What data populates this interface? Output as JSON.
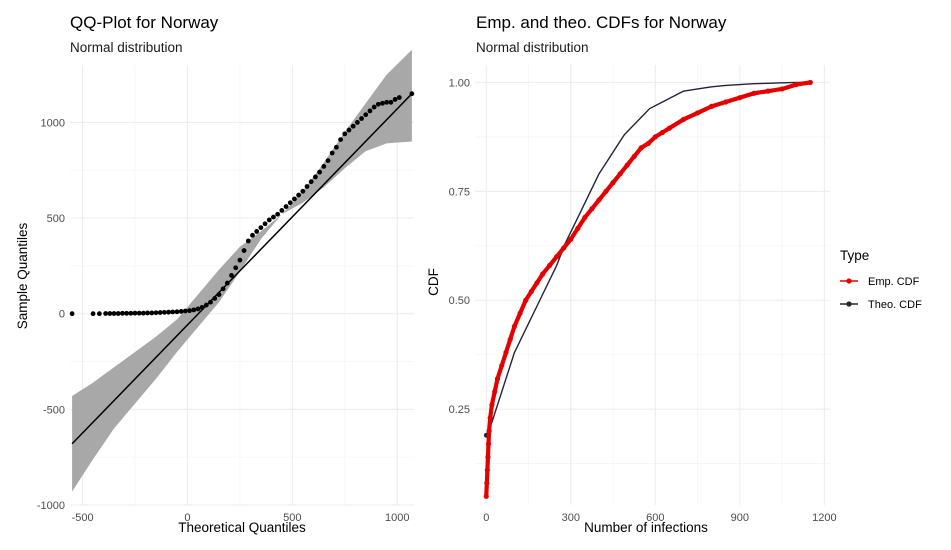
{
  "chart_data": [
    {
      "type": "scatter",
      "title": "QQ-Plot for Norway",
      "subtitle": "Normal distribution",
      "xlabel": "Theoretical Quantiles",
      "ylabel": "Sample Quantiles",
      "xlim": [
        -560,
        1080
      ],
      "ylim": [
        -1000,
        1300
      ],
      "xticks": [
        -500,
        0,
        500,
        1000
      ],
      "yticks": [
        -1000,
        -500,
        0,
        500,
        1000
      ],
      "grid": true,
      "reference_line": {
        "x": [
          -550,
          1070
        ],
        "y": [
          -680,
          1150
        ]
      },
      "confidence_band": {
        "x": [
          -550,
          -450,
          -350,
          -250,
          -150,
          -50,
          50,
          150,
          250,
          350,
          450,
          550,
          650,
          750,
          850,
          950,
          1070
        ],
        "lower": [
          -930,
          -760,
          -600,
          -470,
          -340,
          -200,
          -70,
          60,
          220,
          390,
          520,
          580,
          660,
          760,
          850,
          890,
          900
        ],
        "upper": [
          -430,
          -360,
          -280,
          -200,
          -120,
          -30,
          100,
          230,
          350,
          430,
          520,
          640,
          790,
          950,
          1100,
          1250,
          1380
        ]
      },
      "points": {
        "x": [
          -550,
          -450,
          -420,
          -390,
          -370,
          -350,
          -330,
          -310,
          -290,
          -270,
          -250,
          -230,
          -210,
          -190,
          -170,
          -150,
          -130,
          -110,
          -90,
          -70,
          -50,
          -30,
          -10,
          10,
          30,
          50,
          70,
          90,
          110,
          130,
          150,
          170,
          190,
          210,
          230,
          250,
          270,
          290,
          310,
          330,
          350,
          370,
          390,
          410,
          430,
          450,
          470,
          490,
          510,
          530,
          550,
          570,
          590,
          610,
          630,
          650,
          670,
          690,
          710,
          730,
          750,
          770,
          790,
          810,
          830,
          850,
          870,
          890,
          910,
          930,
          950,
          970,
          990,
          1010,
          1070
        ],
        "y": [
          0,
          0,
          0,
          1,
          1,
          1,
          1,
          2,
          2,
          2,
          3,
          3,
          3,
          4,
          4,
          5,
          6,
          7,
          8,
          9,
          10,
          12,
          14,
          16,
          20,
          25,
          33,
          45,
          60,
          80,
          100,
          130,
          160,
          200,
          240,
          280,
          330,
          380,
          410,
          430,
          450,
          470,
          490,
          505,
          520,
          540,
          560,
          580,
          600,
          620,
          640,
          665,
          690,
          715,
          740,
          770,
          800,
          840,
          870,
          910,
          940,
          960,
          980,
          1000,
          1020,
          1040,
          1060,
          1080,
          1095,
          1100,
          1105,
          1105,
          1120,
          1130,
          1150
        ]
      }
    },
    {
      "type": "line",
      "title": "Emp. and theo. CDFs for Norway",
      "subtitle": "Normal distribution",
      "xlabel": "Number of infections",
      "ylabel": "CDF",
      "xlim": [
        -40,
        1220
      ],
      "ylim": [
        0.03,
        1.04
      ],
      "xticks": [
        0,
        300,
        600,
        900,
        1200
      ],
      "yticks": [
        0.25,
        0.5,
        0.75,
        1.0
      ],
      "grid": true,
      "legend": {
        "title": "Type",
        "position": "right",
        "entries": [
          "Emp. CDF",
          "Theo. CDF"
        ]
      },
      "series": [
        {
          "name": "Emp. CDF",
          "color": "#e50000",
          "x": [
            0,
            2,
            4,
            6,
            8,
            10,
            14,
            20,
            30,
            40,
            55,
            70,
            85,
            100,
            120,
            140,
            160,
            180,
            200,
            225,
            250,
            275,
            300,
            325,
            350,
            375,
            400,
            425,
            450,
            475,
            500,
            525,
            550,
            575,
            600,
            625,
            650,
            700,
            750,
            800,
            850,
            900,
            950,
            1000,
            1050,
            1100,
            1150
          ],
          "y": [
            0.05,
            0.08,
            0.11,
            0.14,
            0.17,
            0.2,
            0.23,
            0.26,
            0.29,
            0.32,
            0.35,
            0.38,
            0.41,
            0.44,
            0.47,
            0.5,
            0.52,
            0.54,
            0.56,
            0.58,
            0.6,
            0.62,
            0.64,
            0.665,
            0.69,
            0.71,
            0.73,
            0.75,
            0.77,
            0.79,
            0.81,
            0.83,
            0.85,
            0.86,
            0.875,
            0.885,
            0.895,
            0.915,
            0.93,
            0.945,
            0.955,
            0.965,
            0.975,
            0.98,
            0.985,
            0.995,
            1.0
          ]
        },
        {
          "name": "Theo. CDF",
          "color": "#23233b",
          "x": [
            0,
            20,
            40,
            60,
            80,
            100,
            130,
            160,
            190,
            220,
            250,
            280,
            310,
            340,
            370,
            400,
            430,
            460,
            490,
            520,
            550,
            580,
            610,
            640,
            670,
            700,
            750,
            800,
            850,
            900,
            950,
            1000,
            1050,
            1100,
            1150
          ],
          "y": [
            0.19,
            0.22,
            0.26,
            0.3,
            0.34,
            0.38,
            0.42,
            0.46,
            0.5,
            0.54,
            0.58,
            0.63,
            0.67,
            0.71,
            0.75,
            0.79,
            0.82,
            0.85,
            0.88,
            0.9,
            0.92,
            0.94,
            0.95,
            0.96,
            0.97,
            0.98,
            0.985,
            0.99,
            0.993,
            0.995,
            0.997,
            0.998,
            0.999,
            1.0,
            1.0
          ]
        }
      ]
    }
  ]
}
